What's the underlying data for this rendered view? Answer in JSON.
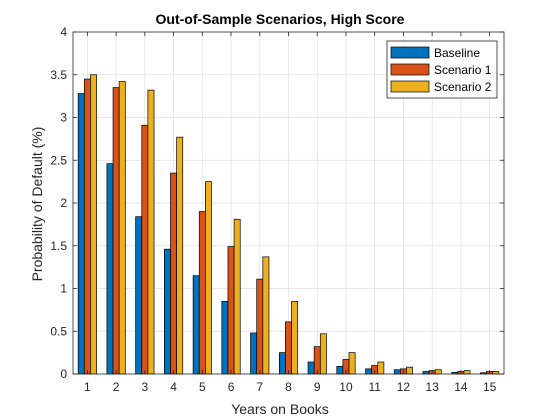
{
  "chart_data": {
    "type": "bar",
    "title": "Out-of-Sample Scenarios, High Score",
    "xlabel": "Years on Books",
    "ylabel": "Probability of Default (%)",
    "categories": [
      "1",
      "2",
      "3",
      "4",
      "5",
      "6",
      "7",
      "8",
      "9",
      "10",
      "11",
      "12",
      "13",
      "14",
      "15"
    ],
    "ylim": [
      0,
      4
    ],
    "yticks": [
      "0",
      "0.5",
      "1",
      "1.5",
      "2",
      "2.5",
      "3",
      "3.5",
      "4"
    ],
    "grid": true,
    "legend_position": "top-right",
    "series": [
      {
        "name": "Baseline",
        "color": "#0072BD",
        "values": [
          3.28,
          2.46,
          1.84,
          1.46,
          1.15,
          0.85,
          0.48,
          0.25,
          0.14,
          0.09,
          0.06,
          0.05,
          0.03,
          0.02,
          0.015
        ]
      },
      {
        "name": "Scenario 1",
        "color": "#D95319",
        "values": [
          3.45,
          3.35,
          2.91,
          2.35,
          1.9,
          1.49,
          1.11,
          0.61,
          0.32,
          0.17,
          0.1,
          0.06,
          0.04,
          0.03,
          0.03
        ]
      },
      {
        "name": "Scenario 2",
        "color": "#EDB120",
        "values": [
          3.5,
          3.42,
          3.32,
          2.77,
          2.25,
          1.81,
          1.37,
          0.85,
          0.47,
          0.25,
          0.14,
          0.08,
          0.05,
          0.04,
          0.03
        ]
      }
    ]
  }
}
